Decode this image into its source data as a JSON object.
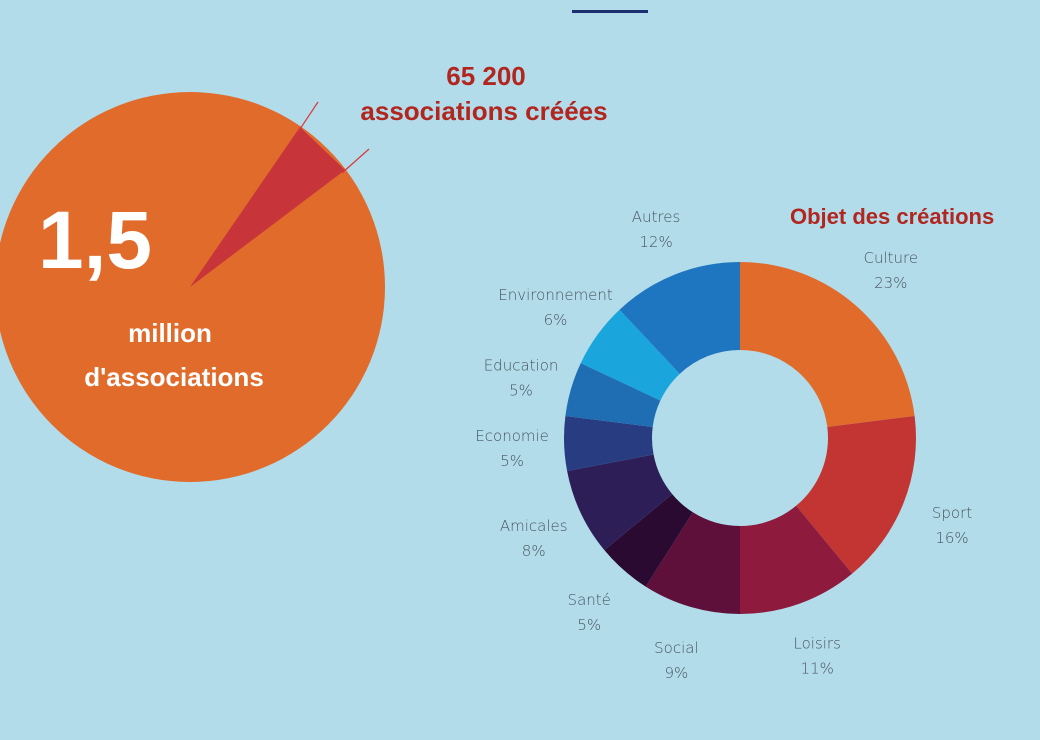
{
  "stats": {
    "total_value": "1,5",
    "total_caption_line1": "million",
    "total_caption_line2": "d'associations",
    "created_value": "65 200",
    "created_caption": "associations créées"
  },
  "colors": {
    "background": "#b3dcea",
    "accent_bar": "#1c2f6e",
    "big_pie": "#e06b2b",
    "big_pie_slice": "#c7343a",
    "title_red": "#b1261f"
  },
  "chart_data": {
    "type": "pie",
    "title": "Objet des créations",
    "donut": true,
    "slices": [
      {
        "label": "Culture",
        "value": 23,
        "value_label": "23%",
        "color": "#e06b2b"
      },
      {
        "label": "Sport",
        "value": 16,
        "value_label": "16%",
        "color": "#c23532"
      },
      {
        "label": "Loisirs",
        "value": 11,
        "value_label": "11%",
        "color": "#8e1a3d"
      },
      {
        "label": "Social",
        "value": 9,
        "value_label": "9%",
        "color": "#5e0f3a"
      },
      {
        "label": "Santé",
        "value": 5,
        "value_label": "5%",
        "color": "#2a0a30"
      },
      {
        "label": "Amicales",
        "value": 8,
        "value_label": "8%",
        "color": "#2e1e58"
      },
      {
        "label": "Economie",
        "value": 5,
        "value_label": "5%",
        "color": "#283c82"
      },
      {
        "label": "Education",
        "value": 5,
        "value_label": "5%",
        "color": "#1f6db3"
      },
      {
        "label": "Environnement",
        "value": 6,
        "value_label": "6%",
        "color": "#1aa6dc"
      },
      {
        "label": "Autres",
        "value": 12,
        "value_label": "12%",
        "color": "#1e75c0"
      }
    ]
  }
}
